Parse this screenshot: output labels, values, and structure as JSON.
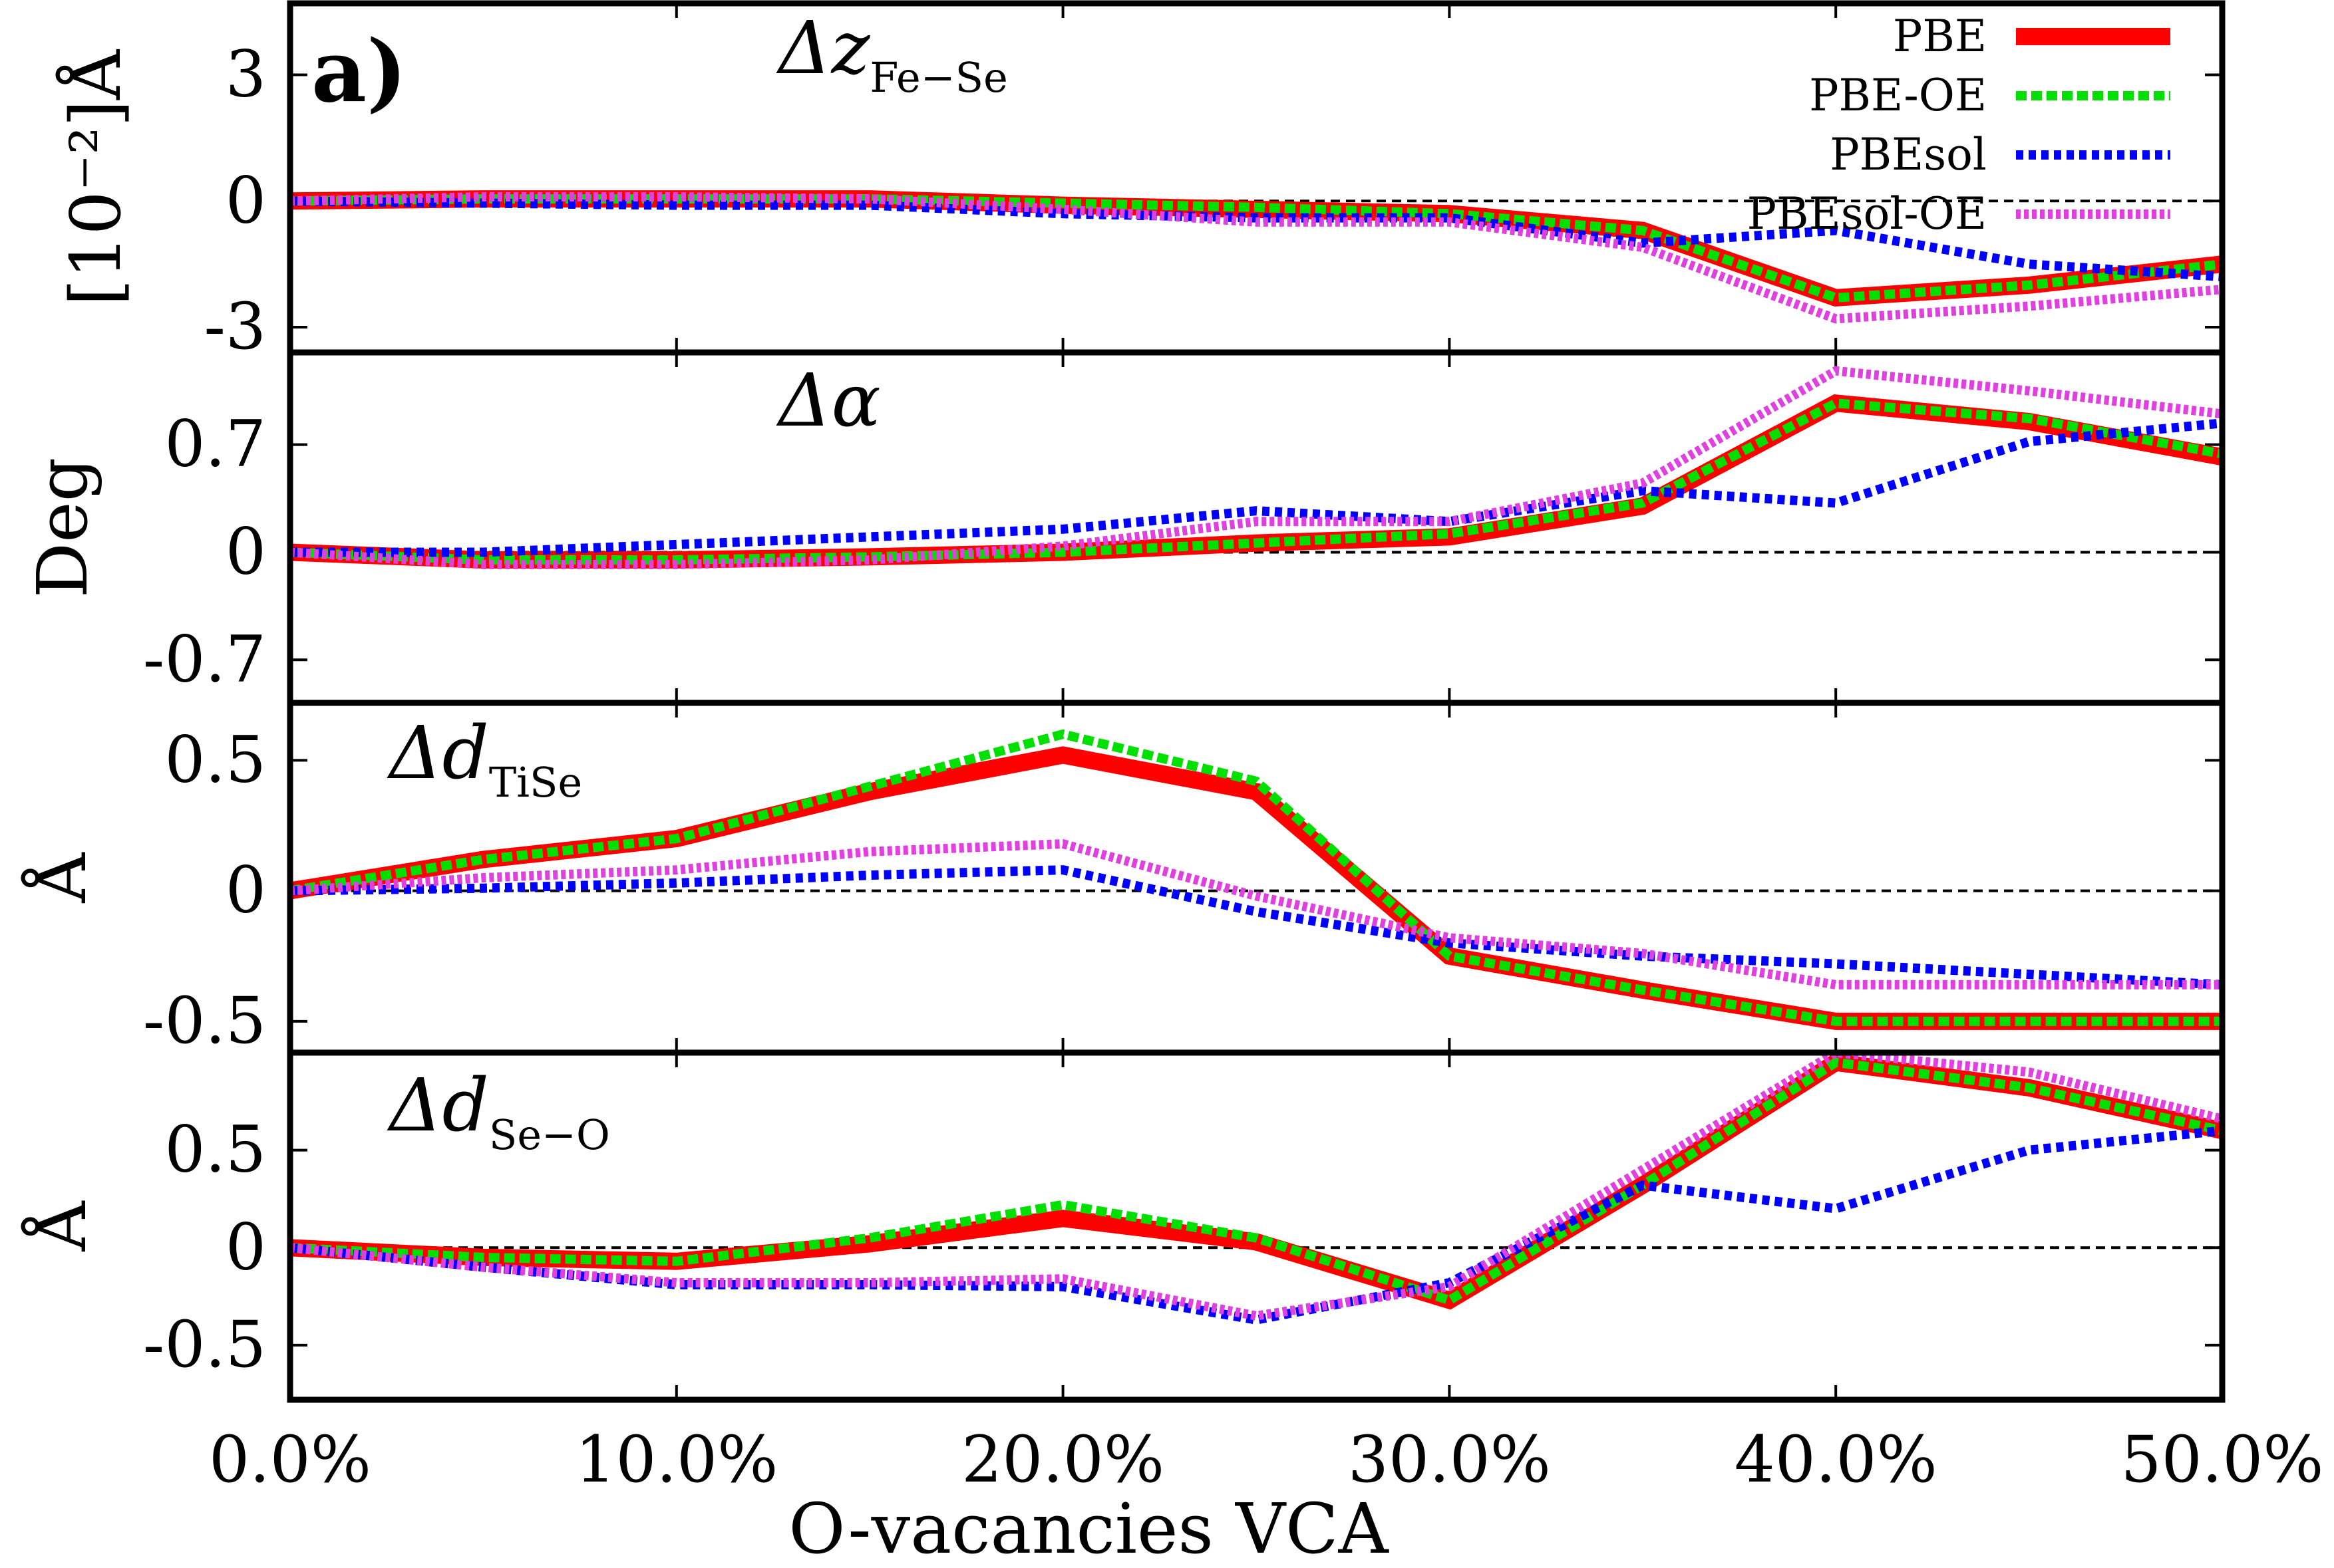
{
  "figure_label": "a)",
  "chart_data": {
    "type": "line",
    "xlabel": "O-vacancies VCA",
    "x": [
      0,
      5,
      10,
      15,
      20,
      25,
      30,
      35,
      40,
      45,
      50
    ],
    "x_tick_labels": [
      "0.0%",
      "10.0%",
      "20.0%",
      "30.0%",
      "40.0%",
      "50.0%"
    ],
    "x_tick_values": [
      0,
      10,
      20,
      30,
      40,
      50
    ],
    "xlim": [
      0,
      50
    ],
    "legend": {
      "placement": "top-right",
      "entries": [
        {
          "name": "PBE",
          "color": "#ff0000",
          "style": "solid"
        },
        {
          "name": "PBE-OE",
          "color": "#00e000",
          "style": "dashed"
        },
        {
          "name": "PBEsol",
          "color": "#0000ff",
          "style": "dotted"
        },
        {
          "name": "PBEsol-OE",
          "color": "#e040e0",
          "style": "dotted"
        }
      ]
    },
    "panels": [
      {
        "title_main": "Δz",
        "title_sub": "Fe−Se",
        "ylabel": "[10⁻²]Å",
        "ylim": [
          -3.6,
          4.7
        ],
        "yticks": [
          -3,
          0,
          3
        ],
        "ytick_labels": [
          "-3",
          "0",
          "3"
        ],
        "zero_line": true,
        "series": [
          {
            "name": "PBE",
            "values": [
              0,
              0.05,
              0.05,
              0.05,
              -0.1,
              -0.2,
              -0.3,
              -0.7,
              -2.3,
              -2.0,
              -1.5
            ]
          },
          {
            "name": "PBE-OE",
            "values": [
              0,
              0.05,
              0.05,
              0.05,
              -0.05,
              -0.15,
              -0.3,
              -0.7,
              -2.3,
              -2.0,
              -1.5
            ]
          },
          {
            "name": "PBEsol",
            "values": [
              0,
              -0.05,
              -0.1,
              -0.1,
              -0.3,
              -0.4,
              -0.4,
              -1.0,
              -0.7,
              -1.5,
              -1.8
            ]
          },
          {
            "name": "PBEsol-OE",
            "values": [
              0,
              0.1,
              0.1,
              0.05,
              -0.2,
              -0.5,
              -0.5,
              -1.1,
              -2.8,
              -2.5,
              -2.1
            ]
          }
        ]
      },
      {
        "title_main": "Δα",
        "title_sub": "",
        "ylabel": "Deg",
        "ylim": [
          -0.98,
          1.3
        ],
        "yticks": [
          -0.7,
          0,
          0.7
        ],
        "ytick_labels": [
          "-0.7",
          "0",
          "0.7"
        ],
        "zero_line": true,
        "series": [
          {
            "name": "PBE",
            "values": [
              0,
              -0.05,
              -0.05,
              -0.03,
              0.0,
              0.06,
              0.1,
              0.3,
              0.97,
              0.85,
              0.62
            ]
          },
          {
            "name": "PBE-OE",
            "values": [
              0,
              -0.05,
              -0.05,
              -0.03,
              0.0,
              0.06,
              0.12,
              0.32,
              0.97,
              0.87,
              0.64
            ]
          },
          {
            "name": "PBEsol",
            "values": [
              0,
              0.0,
              0.05,
              0.1,
              0.15,
              0.27,
              0.2,
              0.4,
              0.32,
              0.72,
              0.84
            ]
          },
          {
            "name": "PBEsol-OE",
            "values": [
              0,
              -0.08,
              -0.08,
              -0.05,
              0.04,
              0.2,
              0.2,
              0.45,
              1.18,
              1.05,
              0.9
            ]
          }
        ]
      },
      {
        "title_main": "Δd",
        "title_sub": "TiSe",
        "ylabel": "Å",
        "ylim": [
          -0.62,
          0.72
        ],
        "yticks": [
          -0.5,
          0,
          0.5
        ],
        "ytick_labels": [
          "-0.5",
          "0",
          "0.5"
        ],
        "zero_line": true,
        "series": [
          {
            "name": "PBE",
            "values": [
              0,
              0.12,
              0.2,
              0.38,
              0.52,
              0.38,
              -0.25,
              -0.38,
              -0.5,
              -0.5,
              -0.5
            ]
          },
          {
            "name": "PBE-OE",
            "values": [
              0,
              0.12,
              0.2,
              0.4,
              0.6,
              0.42,
              -0.25,
              -0.38,
              -0.5,
              -0.5,
              -0.5
            ]
          },
          {
            "name": "PBEsol",
            "values": [
              0,
              0.01,
              0.03,
              0.06,
              0.08,
              -0.08,
              -0.2,
              -0.25,
              -0.28,
              -0.32,
              -0.36
            ]
          },
          {
            "name": "PBEsol-OE",
            "values": [
              0,
              0.05,
              0.08,
              0.15,
              0.18,
              -0.02,
              -0.18,
              -0.24,
              -0.36,
              -0.36,
              -0.36
            ]
          }
        ]
      },
      {
        "title_main": "Δd",
        "title_sub": "Se−O",
        "ylabel": "Å",
        "ylim": [
          -0.78,
          1.0
        ],
        "yticks": [
          -0.5,
          0,
          0.5
        ],
        "ytick_labels": [
          "-0.5",
          "0",
          "0.5"
        ],
        "zero_line": true,
        "series": [
          {
            "name": "PBE",
            "values": [
              0,
              -0.05,
              -0.07,
              0.02,
              0.15,
              0.03,
              -0.27,
              0.32,
              0.95,
              0.82,
              0.6
            ]
          },
          {
            "name": "PBE-OE",
            "values": [
              0,
              -0.05,
              -0.07,
              0.05,
              0.22,
              0.05,
              -0.27,
              0.32,
              0.95,
              0.82,
              0.6
            ]
          },
          {
            "name": "PBEsol",
            "values": [
              0,
              -0.1,
              -0.19,
              -0.19,
              -0.2,
              -0.37,
              -0.18,
              0.32,
              0.2,
              0.5,
              0.6
            ]
          },
          {
            "name": "PBEsol-OE",
            "values": [
              0,
              -0.1,
              -0.18,
              -0.18,
              -0.16,
              -0.35,
              -0.2,
              0.4,
              1.0,
              0.9,
              0.66
            ]
          }
        ]
      }
    ]
  }
}
